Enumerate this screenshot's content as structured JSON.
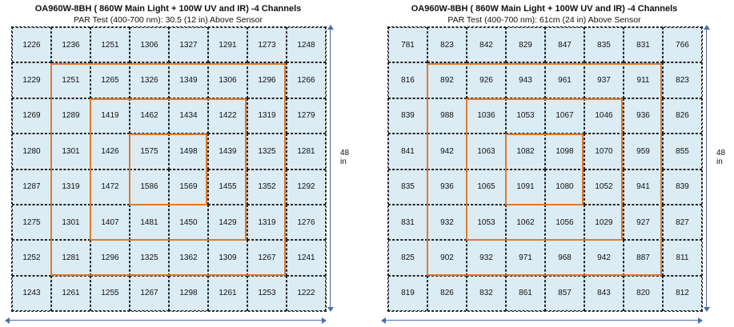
{
  "panels": [
    {
      "title": "OA960W-8BH ( 860W Main Light + 100W UV and IR) -4 Channels",
      "subtitle": "PAR Test (400-700 nm): 30.5 (12 in) Above Sensor",
      "size_label": "48 in",
      "grid": [
        [
          1226,
          1236,
          1251,
          1306,
          1327,
          1291,
          1273,
          1248
        ],
        [
          1229,
          1251,
          1265,
          1326,
          1349,
          1306,
          1296,
          1266
        ],
        [
          1269,
          1289,
          1419,
          1462,
          1434,
          1422,
          1319,
          1279
        ],
        [
          1280,
          1301,
          1426,
          1575,
          1498,
          1439,
          1325,
          1281
        ],
        [
          1287,
          1319,
          1472,
          1586,
          1569,
          1455,
          1352,
          1292
        ],
        [
          1275,
          1301,
          1407,
          1481,
          1450,
          1429,
          1319,
          1276
        ],
        [
          1252,
          1281,
          1296,
          1325,
          1362,
          1309,
          1267,
          1241
        ],
        [
          1243,
          1261,
          1255,
          1267,
          1298,
          1261,
          1253,
          1222
        ]
      ]
    },
    {
      "title": "OA960W-8BH ( 860W Main Light + 100W UV and IR) -4 Channels",
      "subtitle": "PAR Test (400-700 nm): 61cm (24 in) Above Sensor",
      "size_label": "48 in",
      "grid": [
        [
          781,
          823,
          842,
          829,
          847,
          835,
          831,
          766
        ],
        [
          816,
          892,
          926,
          943,
          961,
          937,
          911,
          823
        ],
        [
          839,
          988,
          1036,
          1053,
          1067,
          1046,
          936,
          826
        ],
        [
          841,
          942,
          1063,
          1082,
          1098,
          1070,
          959,
          855
        ],
        [
          835,
          936,
          1065,
          1091,
          1080,
          1052,
          941,
          839
        ],
        [
          831,
          932,
          1053,
          1062,
          1056,
          1029,
          927,
          827
        ],
        [
          825,
          902,
          932,
          971,
          968,
          942,
          887,
          811
        ],
        [
          819,
          826,
          832,
          861,
          857,
          843,
          820,
          812
        ]
      ]
    }
  ],
  "colors": {
    "cell_fill": "#dcecf4",
    "ring": "#e07a2c",
    "arrow": "#4a6fa5"
  }
}
